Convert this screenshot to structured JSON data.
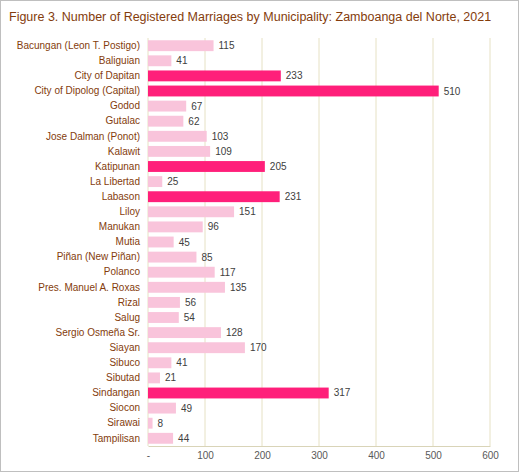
{
  "chart_data": {
    "type": "bar",
    "orientation": "horizontal",
    "title": "Figure 3. Number of Registered Marriages by Municipality: Zamboanga del Norte, 2021",
    "categories": [
      "Bacungan (Leon T. Postigo)",
      "Baliguian",
      "City of Dapitan",
      "City of Dipolog (Capital)",
      "Godod",
      "Gutalac",
      "Jose Dalman (Ponot)",
      "Kalawit",
      "Katipunan",
      "La Libertad",
      "Labason",
      "Liloy",
      "Manukan",
      "Mutia",
      "Piñan (New Piñan)",
      "Polanco",
      "Pres. Manuel A. Roxas",
      "Rizal",
      "Salug",
      "Sergio Osmeña Sr.",
      "Siayan",
      "Sibuco",
      "Sibutad",
      "Sindangan",
      "Siocon",
      "Sirawai",
      "Tampilisan"
    ],
    "values": [
      115,
      41,
      233,
      510,
      67,
      62,
      103,
      109,
      205,
      25,
      231,
      151,
      96,
      45,
      85,
      117,
      135,
      56,
      54,
      128,
      170,
      41,
      21,
      317,
      49,
      8,
      44
    ],
    "colors": [
      "#f9c4db",
      "#f9c4db",
      "#ff1f7a",
      "#ff1f7a",
      "#f9c4db",
      "#f9c4db",
      "#f9c4db",
      "#f9c4db",
      "#ff1f7a",
      "#f9c4db",
      "#ff1f7a",
      "#f9c4db",
      "#f9c4db",
      "#f9c4db",
      "#f9c4db",
      "#f9c4db",
      "#f9c4db",
      "#f9c4db",
      "#f9c4db",
      "#f9c4db",
      "#f9c4db",
      "#f9c4db",
      "#f9c4db",
      "#ff1f7a",
      "#f9c4db",
      "#f9c4db",
      "#f9c4db"
    ],
    "xlim": [
      0,
      600
    ],
    "xticks": [
      {
        "value": 0,
        "label": "-"
      },
      100,
      200,
      300,
      400,
      500,
      600
    ],
    "grid": true,
    "data_labels": true
  }
}
